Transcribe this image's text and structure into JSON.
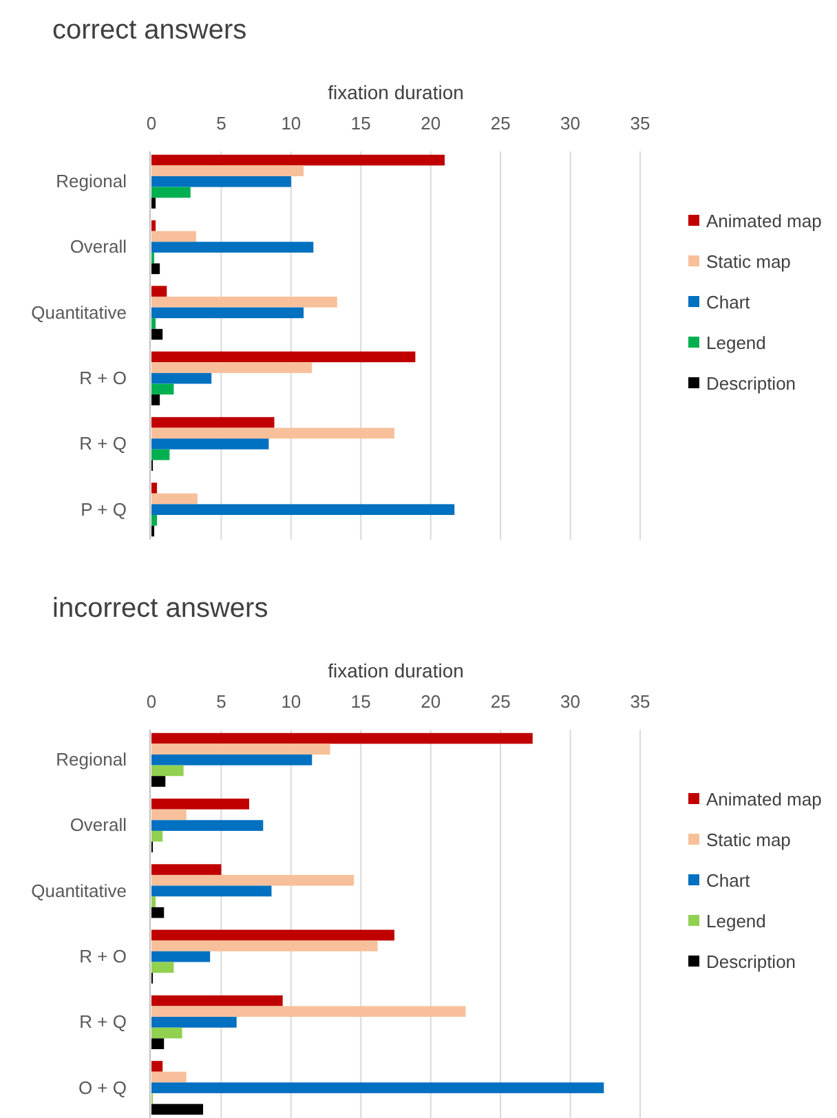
{
  "chart_data": [
    {
      "type": "bar",
      "orientation": "horizontal",
      "title": "correct answers",
      "xlabel": "fixation duration",
      "categories": [
        "Regional",
        "Overall",
        "Quantitative",
        "R + O",
        "R + Q",
        "P + Q"
      ],
      "xlim": [
        0,
        35
      ],
      "xticks": [
        0,
        5,
        10,
        15,
        20,
        25,
        30,
        35
      ],
      "grid": "x",
      "legend": "right",
      "series": [
        {
          "name": "Animated map",
          "color": "#c00000",
          "values": [
            21.0,
            0.3,
            1.1,
            18.9,
            8.8,
            0.4
          ]
        },
        {
          "name": "Static map",
          "color": "#f8c09a",
          "values": [
            10.9,
            3.2,
            13.3,
            11.5,
            17.4,
            3.3
          ]
        },
        {
          "name": "Chart",
          "color": "#0070c0",
          "values": [
            10.0,
            11.6,
            10.9,
            4.3,
            8.4,
            21.7
          ]
        },
        {
          "name": "Legend",
          "color": "#00b050",
          "values": [
            2.8,
            0.2,
            0.3,
            1.6,
            1.3,
            0.4
          ]
        },
        {
          "name": "Description",
          "color": "#000000",
          "values": [
            0.3,
            0.6,
            0.8,
            0.6,
            0.1,
            0.2
          ]
        }
      ]
    },
    {
      "type": "bar",
      "orientation": "horizontal",
      "title": "incorrect answers",
      "xlabel": "fixation duration",
      "categories": [
        "Regional",
        "Overall",
        "Quantitative",
        "R + O",
        "R + Q",
        "O + Q"
      ],
      "xlim": [
        0,
        35
      ],
      "xticks": [
        0,
        5,
        10,
        15,
        20,
        25,
        30,
        35
      ],
      "grid": "x",
      "legend": "right",
      "series": [
        {
          "name": "Animated map",
          "color": "#c00000",
          "values": [
            27.3,
            7.0,
            5.0,
            17.4,
            9.4,
            0.8
          ]
        },
        {
          "name": "Static map",
          "color": "#f8c09a",
          "values": [
            12.8,
            2.5,
            14.5,
            16.2,
            22.5,
            2.5
          ]
        },
        {
          "name": "Chart",
          "color": "#0070c0",
          "values": [
            11.5,
            8.0,
            8.6,
            4.2,
            6.1,
            32.4
          ]
        },
        {
          "name": "Legend",
          "color": "#92d050",
          "values": [
            2.3,
            0.8,
            0.3,
            1.6,
            2.2,
            0.1
          ]
        },
        {
          "name": "Description",
          "color": "#000000",
          "values": [
            1.0,
            0.1,
            0.9,
            0.1,
            0.9,
            3.7
          ]
        }
      ]
    }
  ]
}
